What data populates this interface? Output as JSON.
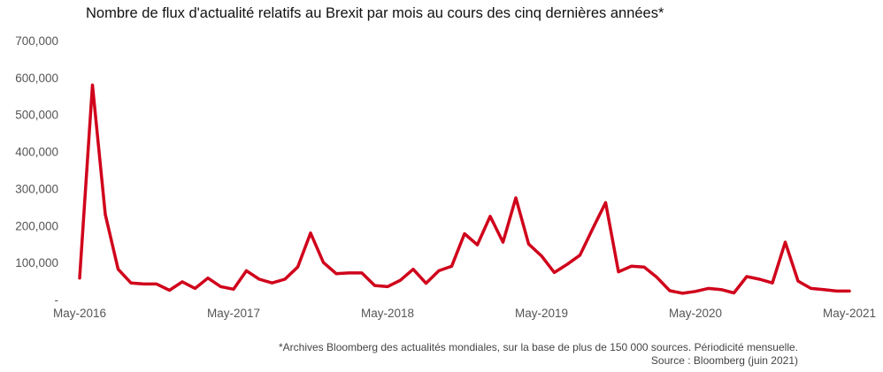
{
  "chart_data": {
    "type": "line",
    "title": "Nombre de flux d'actualité relatifs au Brexit par mois au cours des cinq dernières années*",
    "xlabel": "",
    "ylabel": "",
    "ylim": [
      0,
      700000
    ],
    "grid": false,
    "yticks": [
      "-",
      "100,000",
      "200,000",
      "300,000",
      "400,000",
      "500,000",
      "600,000",
      "700,000"
    ],
    "xticks": [
      "May-2016",
      "May-2017",
      "May-2018",
      "May-2019",
      "May-2020",
      "May-2021"
    ],
    "series": [
      {
        "color": "#d0021b",
        "x": [
          "2016-05",
          "2016-06",
          "2016-07",
          "2016-08",
          "2016-09",
          "2016-10",
          "2016-11",
          "2016-12",
          "2017-01",
          "2017-02",
          "2017-03",
          "2017-04",
          "2017-05",
          "2017-06",
          "2017-07",
          "2017-08",
          "2017-09",
          "2017-10",
          "2017-11",
          "2017-12",
          "2018-01",
          "2018-02",
          "2018-03",
          "2018-04",
          "2018-05",
          "2018-06",
          "2018-07",
          "2018-08",
          "2018-09",
          "2018-10",
          "2018-11",
          "2018-12",
          "2019-01",
          "2019-02",
          "2019-03",
          "2019-04",
          "2019-05",
          "2019-06",
          "2019-07",
          "2019-08",
          "2019-09",
          "2019-10",
          "2019-11",
          "2019-12",
          "2020-01",
          "2020-02",
          "2020-03",
          "2020-04",
          "2020-05",
          "2020-06",
          "2020-07",
          "2020-08",
          "2020-09",
          "2020-10",
          "2020-11",
          "2020-12",
          "2021-01",
          "2021-02",
          "2021-03",
          "2021-04",
          "2021-05"
        ],
        "values": [
          58000,
          580000,
          230000,
          82000,
          45000,
          42000,
          42000,
          25000,
          48000,
          30000,
          58000,
          35000,
          28000,
          78000,
          55000,
          45000,
          55000,
          88000,
          180000,
          100000,
          70000,
          72000,
          72000,
          38000,
          35000,
          52000,
          82000,
          44000,
          78000,
          90000,
          178000,
          148000,
          225000,
          155000,
          275000,
          150000,
          118000,
          73000,
          95000,
          120000,
          192000,
          262000,
          75000,
          90000,
          88000,
          60000,
          24000,
          17000,
          22000,
          30000,
          27000,
          18000,
          62000,
          55000,
          45000,
          155000,
          50000,
          30000,
          27000,
          23000,
          23000
        ]
      }
    ]
  },
  "footnote": {
    "line1": "*Archives Bloomberg des actualités mondiales, sur la base de plus de 150 000 sources. Périodicité mensuelle.",
    "line2": "Source : Bloomberg (juin 2021)"
  }
}
